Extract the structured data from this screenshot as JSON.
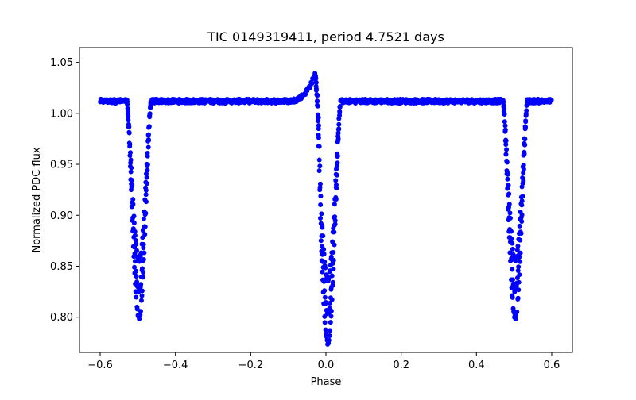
{
  "chart_data": {
    "type": "scatter",
    "title": "TIC 0149319411, period 4.7521 days",
    "xlabel": "Phase",
    "ylabel": "Normalized PDC flux",
    "xlim": [
      -0.655,
      0.655
    ],
    "ylim": [
      0.7655,
      1.0645
    ],
    "xticks": [
      -0.6,
      -0.4,
      -0.2,
      0.0,
      0.2,
      0.4,
      0.6
    ],
    "xtick_labels": [
      "−0.6",
      "−0.4",
      "−0.2",
      "0.0",
      "0.2",
      "0.4",
      "0.6"
    ],
    "yticks": [
      0.8,
      0.85,
      0.9,
      0.95,
      1.0,
      1.05
    ],
    "ytick_labels": [
      "0.80",
      "0.85",
      "0.90",
      "0.95",
      "1.00",
      "1.05"
    ],
    "grid": false,
    "marker_color": "#0000ff",
    "series": [
      {
        "name": "PDC flux",
        "baseline": 1.012,
        "features": [
          {
            "kind": "eclipse",
            "center": -0.497,
            "depth_min": 0.8,
            "half_width": 0.032
          },
          {
            "kind": "eclipse",
            "center": 0.005,
            "depth_min": 0.775,
            "half_width": 0.034
          },
          {
            "kind": "eclipse",
            "center": 0.503,
            "depth_min": 0.8,
            "half_width": 0.032
          },
          {
            "kind": "brightening",
            "center": -0.02,
            "peak": 1.048
          }
        ],
        "x_range": [
          -0.6,
          0.6
        ]
      }
    ]
  }
}
